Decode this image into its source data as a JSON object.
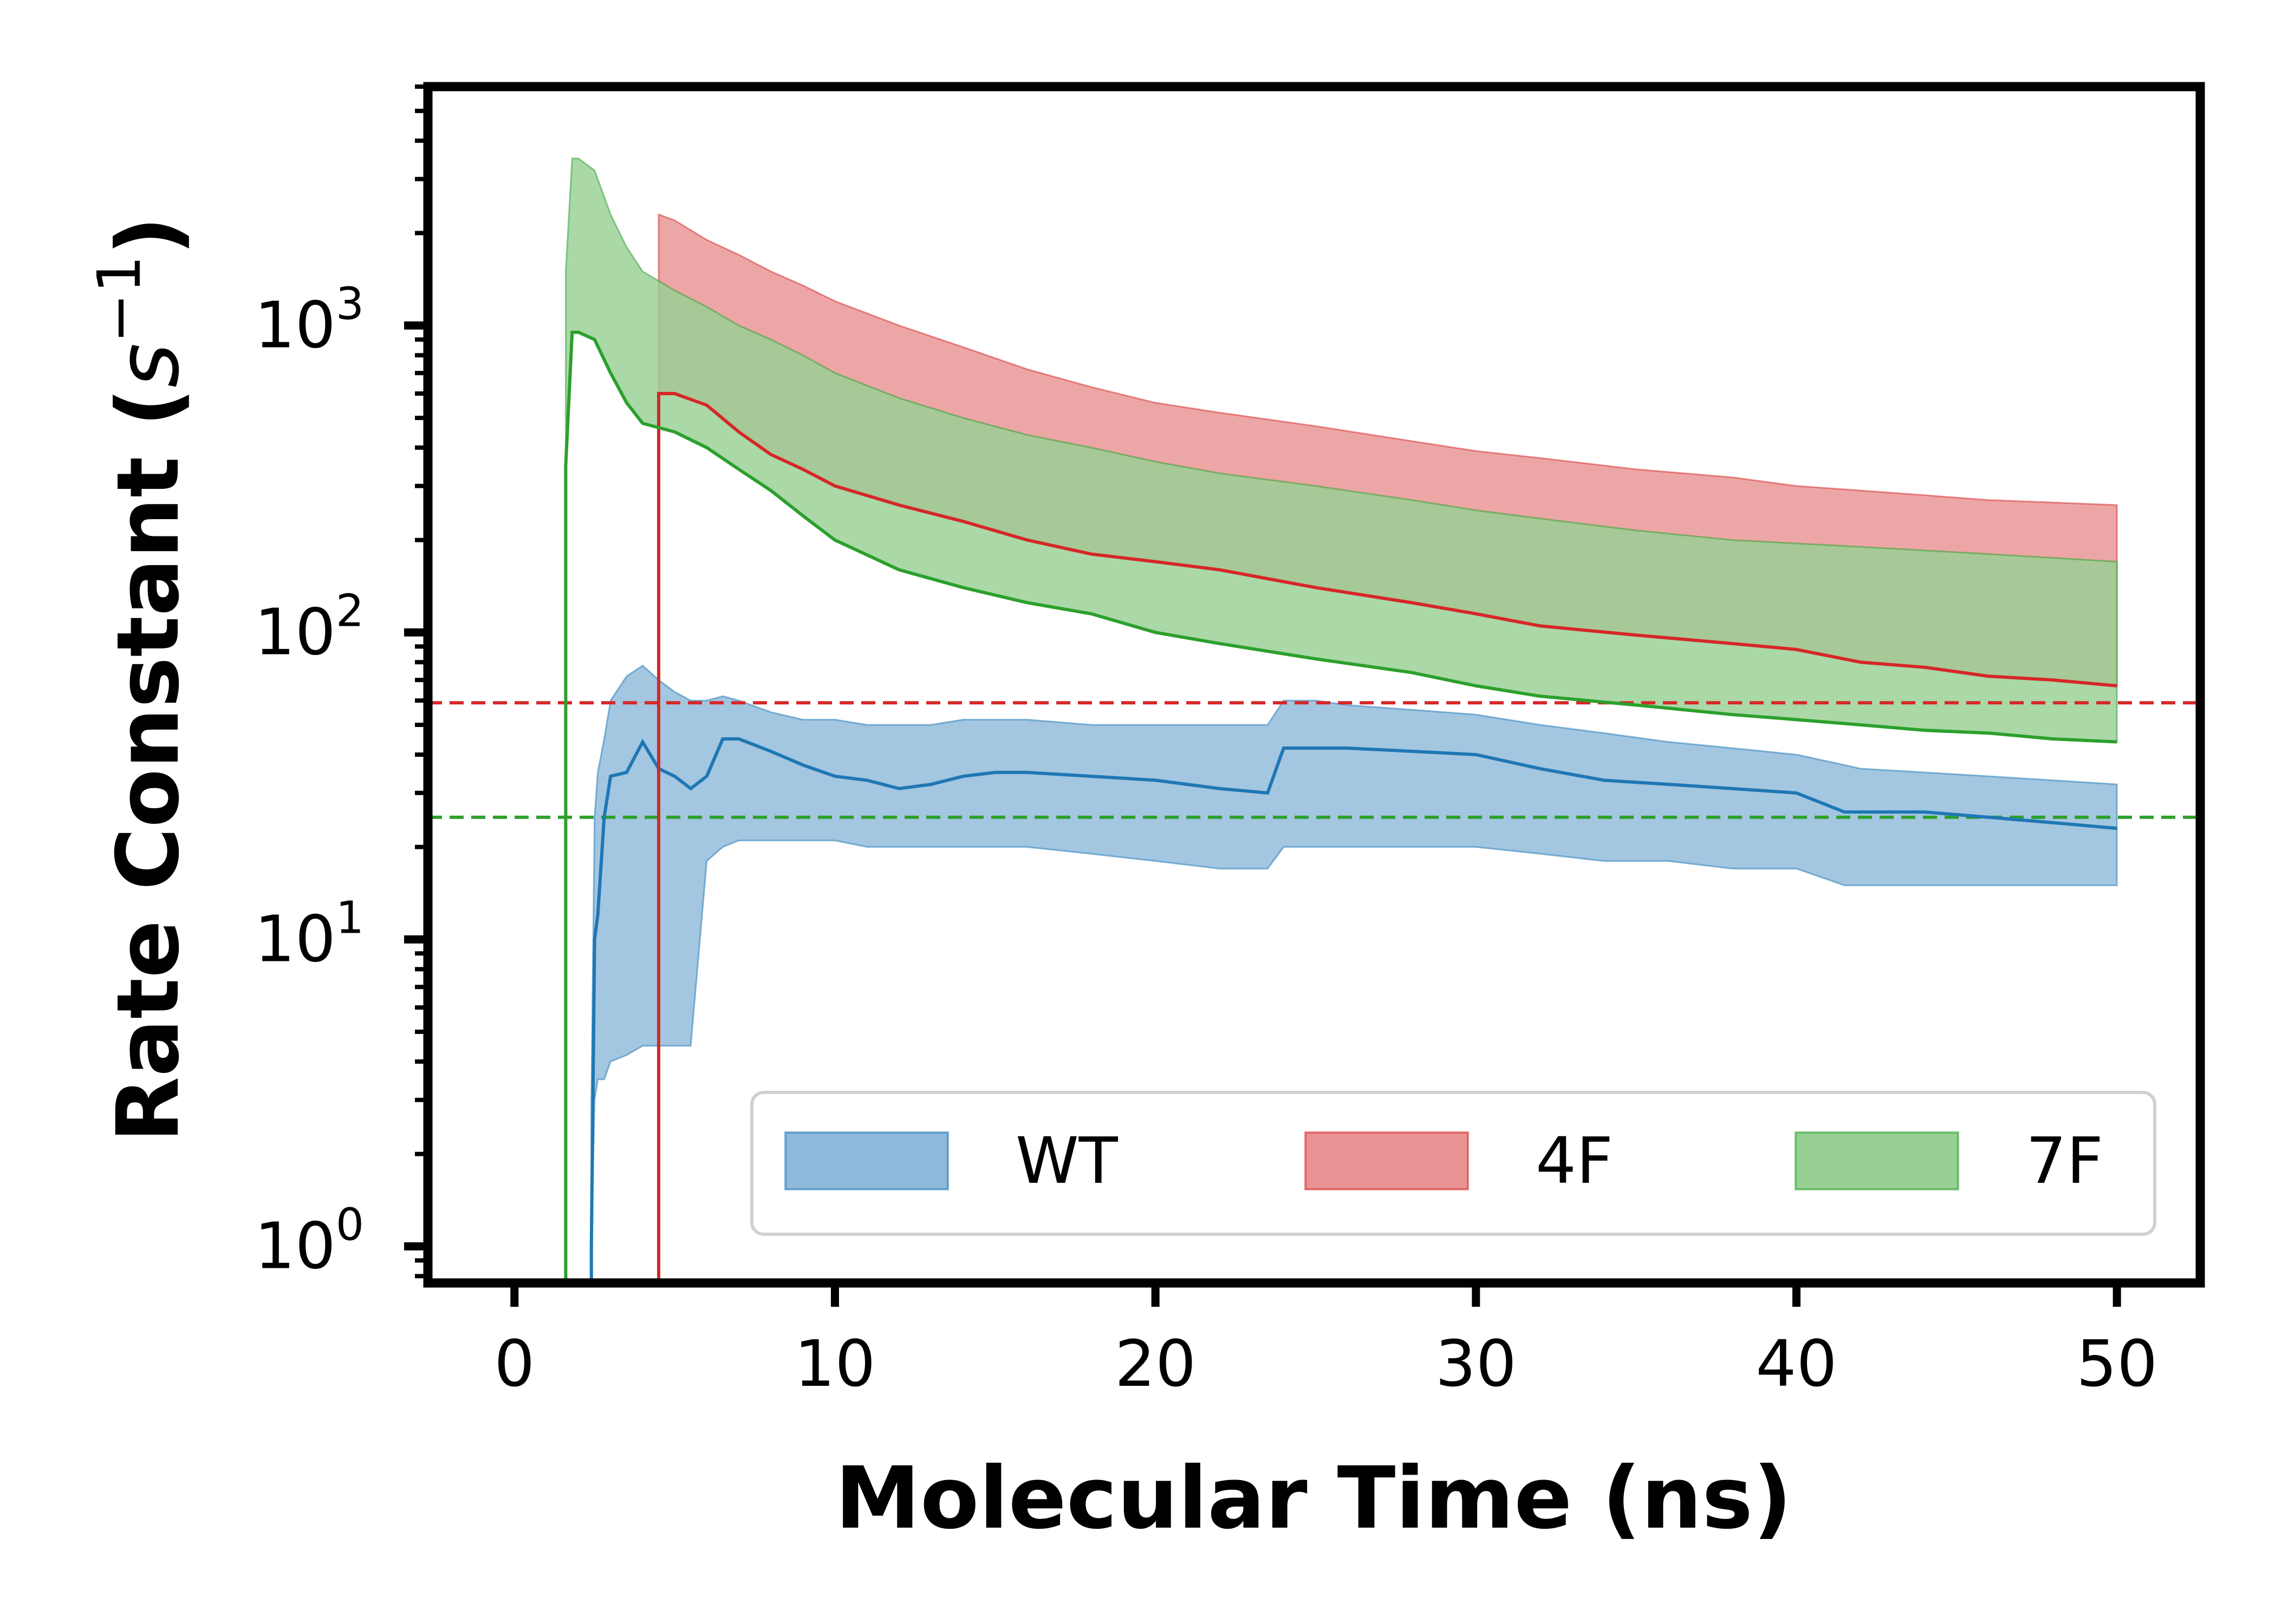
{
  "chart_data": {
    "type": "line",
    "xlabel": "Molecular Time (ns)",
    "ylabel_text": "Rate Constant (",
    "ylabel_unit_base": "s",
    "ylabel_unit_exp": "−1",
    "ylabel_close": ")",
    "xlim": [
      -2.7,
      52.6
    ],
    "ylim": [
      0.76,
      6000
    ],
    "yscale": "log",
    "xticks": [
      {
        "value": 0,
        "label": "0"
      },
      {
        "value": 10,
        "label": "10"
      },
      {
        "value": 20,
        "label": "20"
      },
      {
        "value": 30,
        "label": "30"
      },
      {
        "value": 40,
        "label": "40"
      },
      {
        "value": 50,
        "label": "50"
      }
    ],
    "yticks": [
      {
        "value": 1,
        "base": "10",
        "exp": "0"
      },
      {
        "value": 10,
        "base": "10",
        "exp": "1"
      },
      {
        "value": 100,
        "base": "10",
        "exp": "2"
      },
      {
        "value": 1000,
        "base": "10",
        "exp": "3"
      }
    ],
    "legend_position": "lower-right",
    "grid": false,
    "series": [
      {
        "name": "WT",
        "color": "#1f77b4",
        "fill": "#8fb9db",
        "x": [
          2.4,
          2.5,
          2.6,
          2.8,
          3.0,
          3.5,
          4.0,
          4.5,
          5.0,
          5.5,
          6.0,
          6.5,
          7.0,
          8.0,
          9.0,
          10.0,
          11.0,
          12.0,
          13.0,
          14.0,
          15.0,
          16.0,
          18.0,
          20.0,
          22.0,
          23.5,
          24.0,
          24.5,
          25.0,
          26.0,
          28.0,
          30.0,
          32.0,
          34.0,
          36.0,
          38.0,
          40.0,
          41.5,
          42.0,
          44.0,
          46.0,
          48.0,
          50.0
        ],
        "y": [
          1,
          10,
          12,
          25,
          34,
          35,
          44,
          36,
          34,
          31,
          34,
          45,
          45,
          41,
          37,
          34,
          33,
          31,
          32,
          34,
          35,
          35,
          34,
          33,
          31,
          30,
          42,
          42,
          42,
          42,
          41,
          40,
          36,
          33,
          32,
          31,
          30,
          26,
          26,
          26,
          25,
          24,
          23
        ],
        "upper": [
          3,
          25,
          35,
          45,
          60,
          72,
          78,
          70,
          64,
          60,
          60,
          62,
          60,
          55,
          52,
          52,
          50,
          50,
          50,
          52,
          52,
          52,
          50,
          50,
          50,
          50,
          60,
          60,
          60,
          58,
          56,
          54,
          50,
          47,
          44,
          42,
          40,
          37,
          36,
          35,
          34,
          33,
          32
        ],
        "lower": [
          1,
          3,
          3.5,
          3.5,
          4,
          4.2,
          4.5,
          4.5,
          4.5,
          4.5,
          18,
          20,
          21,
          21,
          21,
          21,
          20,
          20,
          20,
          20,
          20,
          20,
          19,
          18,
          17,
          17,
          20,
          20,
          20,
          20,
          20,
          20,
          19,
          18,
          18,
          17,
          17,
          15,
          15,
          15,
          15,
          15,
          15
        ]
      },
      {
        "name": "4F",
        "color": "#d62728",
        "fill": "#e99293",
        "x": [
          4.5,
          5.0,
          6.0,
          7.0,
          8.0,
          9.0,
          10.0,
          12.0,
          14.0,
          16.0,
          18.0,
          20.0,
          22.0,
          25.0,
          28.0,
          30.0,
          32.0,
          35.0,
          38.0,
          40.0,
          42.0,
          44.0,
          46.0,
          48.0,
          50.0
        ],
        "y": [
          600,
          600,
          550,
          450,
          380,
          340,
          300,
          260,
          230,
          200,
          180,
          170,
          160,
          140,
          125,
          115,
          105,
          98,
          92,
          88,
          80,
          77,
          72,
          70,
          67
        ],
        "upper": [
          2300,
          2200,
          1900,
          1700,
          1500,
          1350,
          1200,
          1000,
          850,
          720,
          630,
          560,
          520,
          470,
          420,
          390,
          370,
          340,
          320,
          300,
          290,
          280,
          270,
          265,
          260
        ],
        "lower": [
          600,
          600,
          550,
          450,
          380,
          340,
          300,
          260,
          230,
          200,
          180,
          170,
          160,
          140,
          125,
          115,
          105,
          98,
          92,
          88,
          80,
          77,
          72,
          70,
          67
        ]
      },
      {
        "name": "7F",
        "color": "#2ca02c",
        "fill": "#97cf94",
        "x": [
          1.6,
          1.8,
          2.0,
          2.5,
          3.0,
          3.5,
          4.0,
          5.0,
          6.0,
          7.0,
          8.0,
          9.0,
          10.0,
          12.0,
          14.0,
          16.0,
          18.0,
          20.0,
          22.0,
          25.0,
          28.0,
          30.0,
          32.0,
          35.0,
          38.0,
          40.0,
          42.0,
          44.0,
          46.0,
          48.0,
          50.0
        ],
        "y": [
          350,
          950,
          950,
          900,
          700,
          560,
          480,
          450,
          400,
          340,
          290,
          240,
          200,
          160,
          140,
          125,
          115,
          100,
          92,
          82,
          74,
          67,
          62,
          58,
          54,
          52,
          50,
          48,
          47,
          45,
          44
        ],
        "upper": [
          1500,
          3500,
          3500,
          3200,
          2300,
          1800,
          1500,
          1300,
          1150,
          1000,
          900,
          800,
          700,
          580,
          500,
          440,
          400,
          360,
          330,
          300,
          270,
          250,
          235,
          215,
          200,
          195,
          190,
          185,
          180,
          175,
          170
        ],
        "lower": [
          350,
          950,
          950,
          900,
          700,
          560,
          480,
          450,
          400,
          340,
          290,
          240,
          200,
          160,
          140,
          125,
          115,
          100,
          92,
          82,
          74,
          67,
          62,
          58,
          54,
          52,
          50,
          48,
          47,
          45,
          44
        ]
      }
    ],
    "hlines": [
      {
        "y": 59,
        "color": "#d62728",
        "style": "dashed"
      },
      {
        "y": 25,
        "color": "#2ca02c",
        "style": "dashed"
      }
    ]
  }
}
